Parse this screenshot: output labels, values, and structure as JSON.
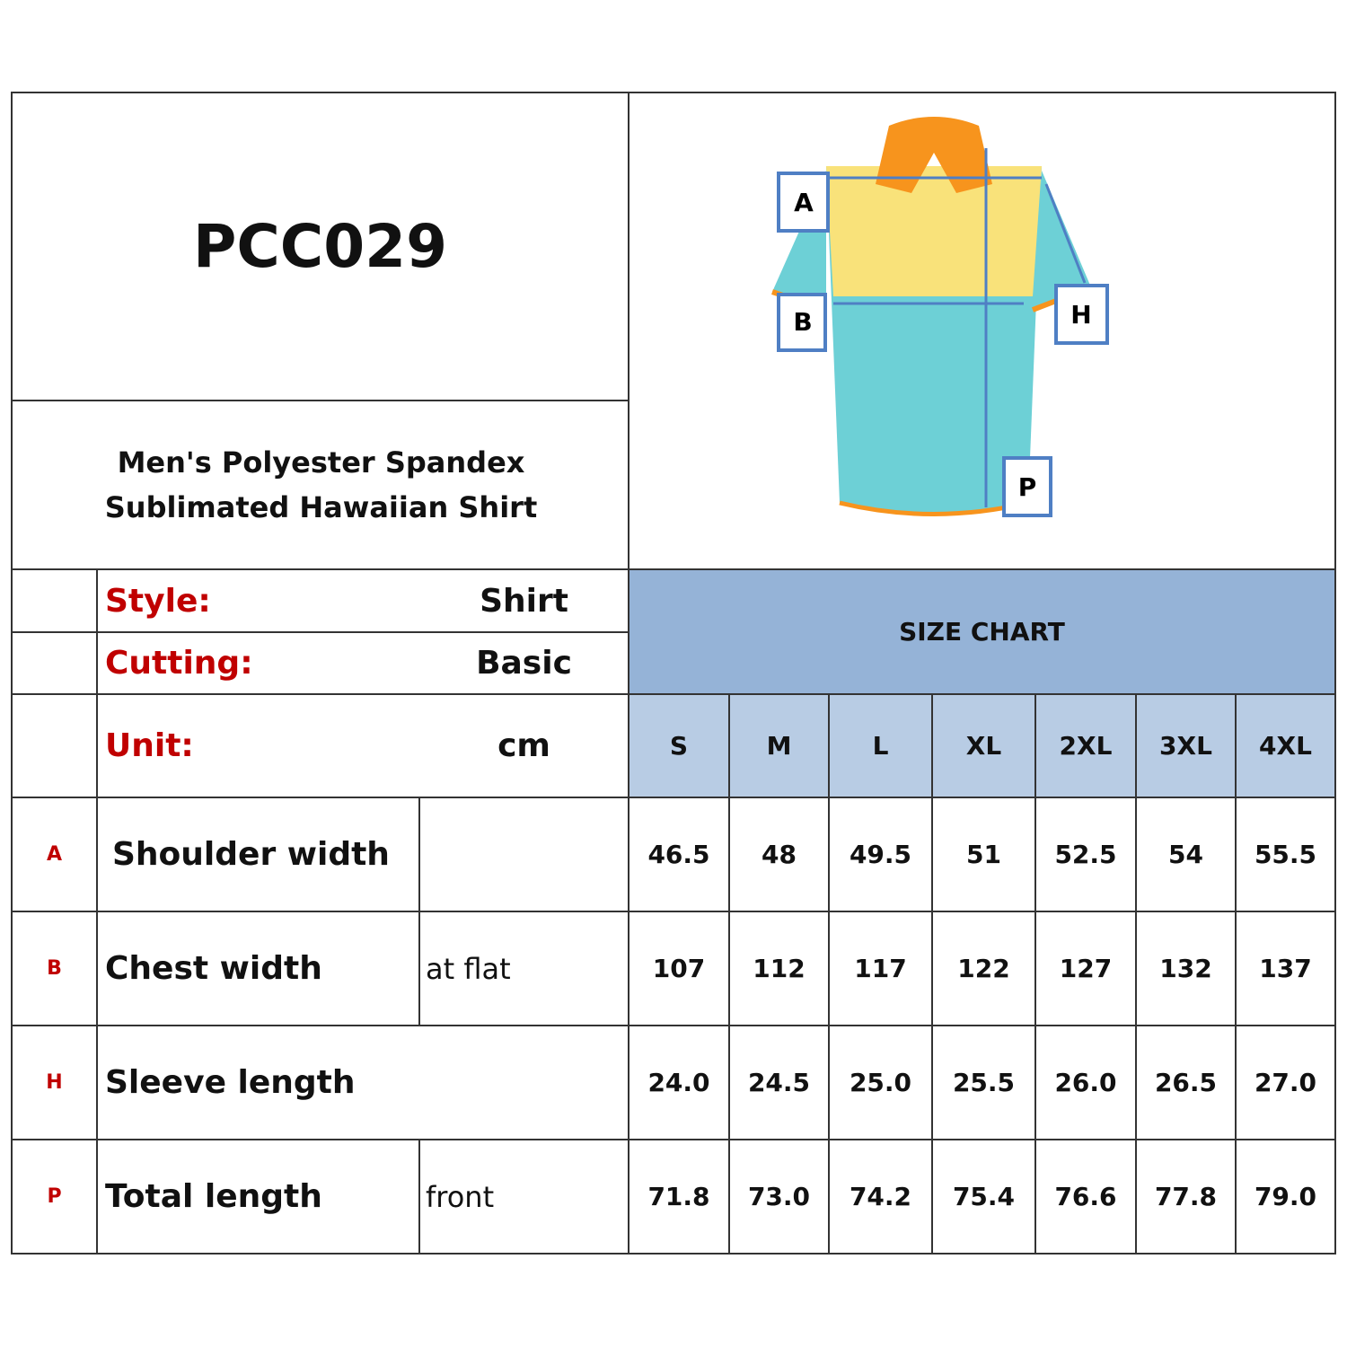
{
  "header": {
    "code": "PCC029",
    "product_name": "Men's Polyester Spandex Sublimated Hawaiian Shirt"
  },
  "diagram": {
    "labels": [
      "A",
      "B",
      "H",
      "P"
    ],
    "colors": {
      "collar": "#f7941d",
      "yoke": "#f9e27a",
      "body": "#6dd0d6",
      "marker": "#4f7fc4"
    }
  },
  "specs": [
    {
      "label": "Style:",
      "value": "Shirt"
    },
    {
      "label": "Cutting:",
      "value": "Basic"
    },
    {
      "label": "Unit:",
      "value": "cm"
    }
  ],
  "size_chart": {
    "title": "SIZE CHART",
    "sizes": [
      "S",
      "M",
      "L",
      "XL",
      "2XL",
      "3XL",
      "4XL"
    ],
    "rows": [
      {
        "code": "A",
        "name": "Shoulder width",
        "note": "",
        "values": [
          "46.5",
          "48",
          "49.5",
          "51",
          "52.5",
          "54",
          "55.5"
        ]
      },
      {
        "code": "B",
        "name": "Chest width",
        "note": "at flat",
        "values": [
          "107",
          "112",
          "117",
          "122",
          "127",
          "132",
          "137"
        ]
      },
      {
        "code": "H",
        "name": "Sleeve length",
        "note": "",
        "values": [
          "24.0",
          "24.5",
          "25.0",
          "25.5",
          "26.0",
          "26.5",
          "27.0"
        ]
      },
      {
        "code": "P",
        "name": "Total length",
        "note": "front",
        "values": [
          "71.8",
          "73.0",
          "74.2",
          "75.4",
          "76.6",
          "77.8",
          "79.0"
        ]
      }
    ]
  },
  "colors": {
    "title_band": "#95b3d7",
    "size_band": "#b8cce4",
    "label_red": "#c00000"
  }
}
